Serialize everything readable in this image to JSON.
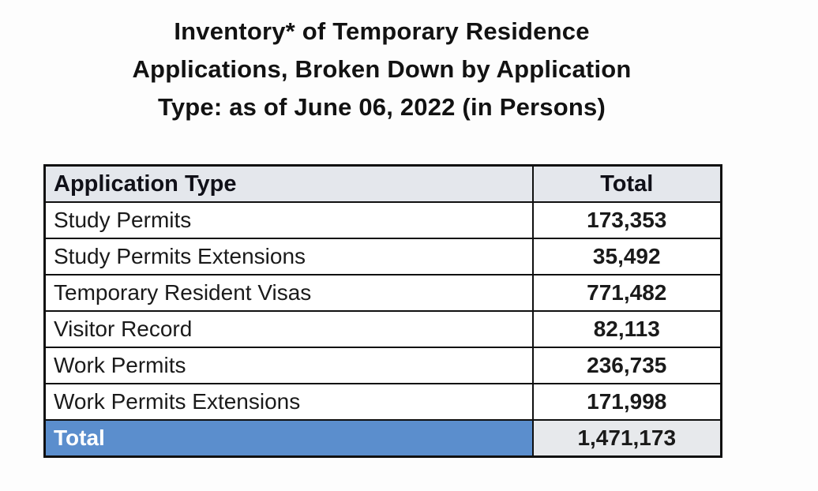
{
  "page": {
    "title_lines": [
      "Inventory* of Temporary Residence",
      "Applications, Broken Down by Application",
      "Type: as of June 06, 2022 (in Persons)"
    ]
  },
  "table": {
    "headers": {
      "type": "Application Type",
      "total": "Total"
    },
    "rows": [
      {
        "type": "Study Permits",
        "total": "173,353"
      },
      {
        "type": "Study Permits Extensions",
        "total": "35,492"
      },
      {
        "type": "Temporary Resident Visas",
        "total": "771,482"
      },
      {
        "type": "Visitor Record",
        "total": "82,113"
      },
      {
        "type": "Work Permits",
        "total": "236,735"
      },
      {
        "type": "Work Permits Extensions",
        "total": "171,998"
      }
    ],
    "footer": {
      "type": "Total",
      "total": "1,471,173"
    }
  },
  "colors": {
    "header_bg": "#e4e7ec",
    "total_label_bg": "#5b8ecd",
    "total_label_text": "#ffffff",
    "total_value_bg": "#e7e9ec",
    "border": "#101010"
  },
  "chart_data": {
    "type": "table",
    "title": "Inventory* of Temporary Residence Applications, Broken Down by Application Type: as of June 06, 2022 (in Persons)",
    "columns": [
      "Application Type",
      "Total"
    ],
    "categories": [
      "Study Permits",
      "Study Permits Extensions",
      "Temporary Resident Visas",
      "Visitor Record",
      "Work Permits",
      "Work Permits Extensions"
    ],
    "values": [
      173353,
      35492,
      771482,
      82113,
      236735,
      171998
    ],
    "total_row": {
      "label": "Total",
      "value": 1471173
    },
    "units": "Persons",
    "as_of_date": "June 06, 2022"
  }
}
